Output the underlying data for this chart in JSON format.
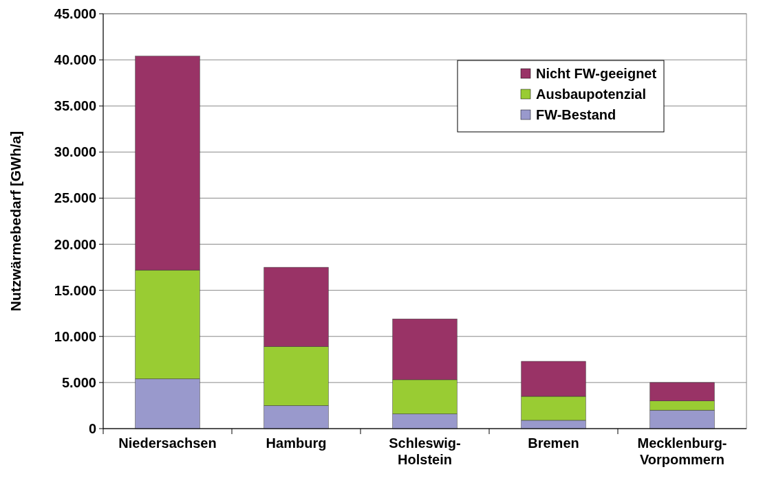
{
  "chart_data": {
    "type": "bar",
    "stacked": true,
    "ylabel": "Nutzwärmebedarf [GWh/a]",
    "categories": [
      "Niedersachsen",
      "Hamburg",
      "Schleswig-Holstein",
      "Bremen",
      "Mecklenburg-Vorpommern"
    ],
    "series": [
      {
        "name": "FW-Bestand",
        "color": "#9999cc",
        "values": [
          5400,
          2500,
          1600,
          900,
          2000
        ]
      },
      {
        "name": "Ausbaupotenzial",
        "color": "#99cc33",
        "values": [
          11800,
          6400,
          3700,
          2600,
          1000
        ]
      },
      {
        "name": "Nicht FW-geeignet",
        "color": "#993366",
        "values": [
          23200,
          8600,
          6600,
          3800,
          2000
        ]
      }
    ],
    "ylim": [
      0,
      45000
    ],
    "yticks": [
      {
        "value": 0,
        "label": "0"
      },
      {
        "value": 5000,
        "label": "5.000"
      },
      {
        "value": 10000,
        "label": "10.000"
      },
      {
        "value": 15000,
        "label": "15.000"
      },
      {
        "value": 20000,
        "label": "20.000"
      },
      {
        "value": 25000,
        "label": "25.000"
      },
      {
        "value": 30000,
        "label": "30.000"
      },
      {
        "value": 35000,
        "label": "35.000"
      },
      {
        "value": 40000,
        "label": "40.000"
      },
      {
        "value": 45000,
        "label": "45.000"
      }
    ],
    "grid": "y",
    "legend": "top right"
  }
}
